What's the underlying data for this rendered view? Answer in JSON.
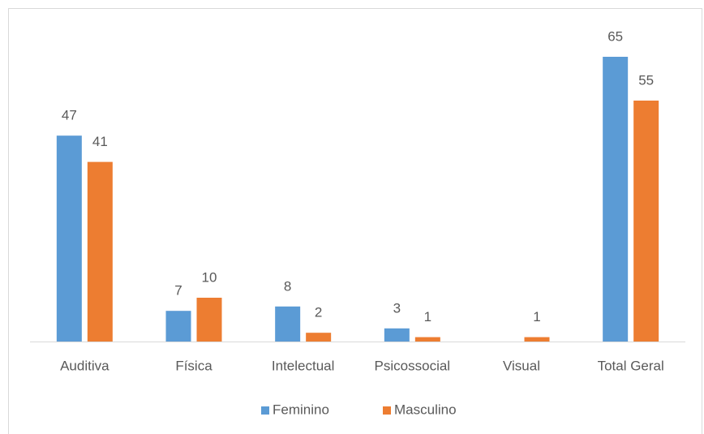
{
  "chart_data": {
    "type": "bar",
    "categories": [
      "Auditiva",
      "Física",
      "Intelectual",
      "Psicossocial",
      "Visual",
      "Total Geral"
    ],
    "series": [
      {
        "name": "Feminino",
        "color": "#5b9bd5",
        "values": [
          47,
          7,
          8,
          3,
          null,
          65
        ]
      },
      {
        "name": "Masculino",
        "color": "#ed7d31",
        "values": [
          41,
          10,
          2,
          1,
          1,
          55
        ]
      }
    ],
    "legend": "bottom"
  }
}
